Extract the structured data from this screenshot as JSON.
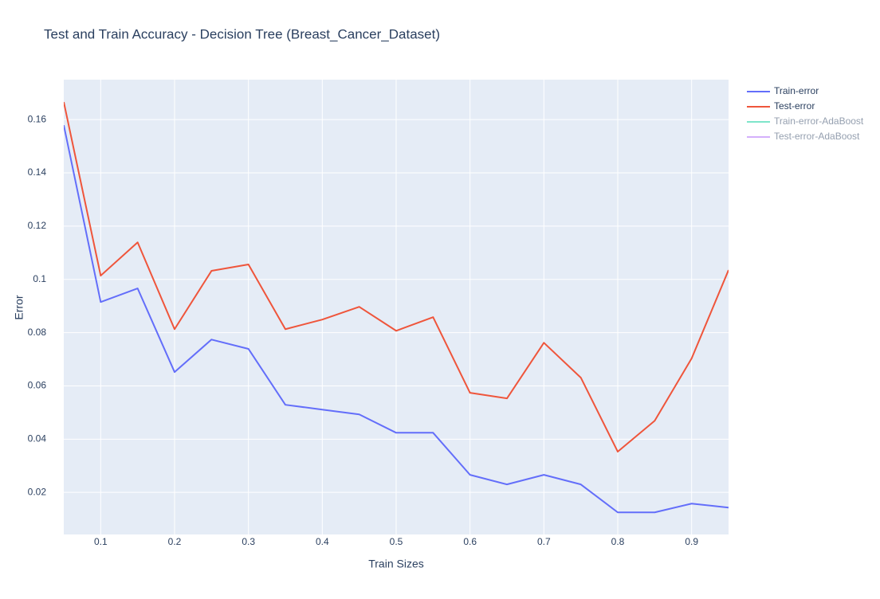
{
  "chart_data": {
    "type": "line",
    "title": "Test and Train Accuracy - Decision Tree (Breast_Cancer_Dataset)",
    "x_label": "Train Sizes",
    "y_label": "Error",
    "x": [
      0.05,
      0.1,
      0.15,
      0.2,
      0.25,
      0.3,
      0.35,
      0.4,
      0.45,
      0.5,
      0.55,
      0.6,
      0.65,
      0.7,
      0.75,
      0.8,
      0.85,
      0.9,
      0.95
    ],
    "series": [
      {
        "name": "Train-error",
        "color": "#636efa",
        "visible": true,
        "values": [
          0.1579,
          0.0915,
          0.0966,
          0.0652,
          0.0774,
          0.0739,
          0.0529,
          0.0511,
          0.0493,
          0.0424,
          0.0424,
          0.0266,
          0.023,
          0.0266,
          0.023,
          0.0125,
          0.0125,
          0.0158,
          0.0143
        ]
      },
      {
        "name": "Test-error",
        "color": "#EF553B",
        "visible": true,
        "values": [
          0.1666,
          0.1014,
          0.1139,
          0.0813,
          0.1032,
          0.1056,
          0.0813,
          0.0849,
          0.0897,
          0.0807,
          0.0858,
          0.0574,
          0.0553,
          0.0762,
          0.0631,
          0.0353,
          0.0469,
          0.0703,
          0.1035
        ]
      },
      {
        "name": "Train-error-AdaBoost",
        "color": "#00cc96",
        "visible": "legendonly",
        "values": [
          null,
          null,
          null,
          null,
          null,
          null,
          null,
          null,
          null,
          null,
          null,
          null,
          null,
          null,
          null,
          null,
          null,
          null,
          null
        ]
      },
      {
        "name": "Test-error-AdaBoost",
        "color": "#ab63fa",
        "visible": "legendonly",
        "values": [
          null,
          null,
          null,
          null,
          null,
          null,
          null,
          null,
          null,
          null,
          null,
          null,
          null,
          null,
          null,
          null,
          null,
          null,
          null
        ]
      }
    ],
    "xlim": [
      0.05,
      0.95
    ],
    "xticks": [
      0.1,
      0.2,
      0.3,
      0.4,
      0.5,
      0.6,
      0.7,
      0.8,
      0.9
    ],
    "ylim": [
      0.0042,
      0.175
    ],
    "yticks": [
      0.02,
      0.04,
      0.06,
      0.08,
      0.1,
      0.12,
      0.14,
      0.16
    ],
    "grid": true,
    "legend": "right"
  }
}
